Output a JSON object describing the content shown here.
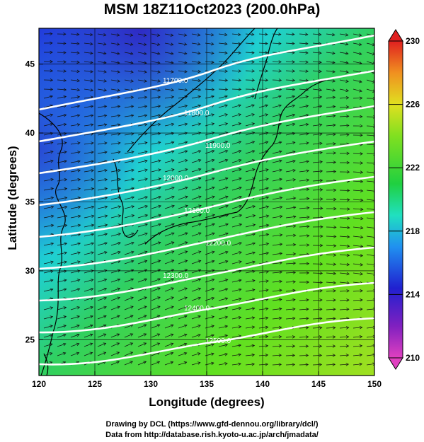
{
  "title": "MSM 18Z11Oct2023 (200.0hPa)",
  "xaxis": {
    "label": "Longitude (degrees)",
    "range": [
      120,
      150
    ],
    "ticks": [
      "120",
      "125",
      "130",
      "135",
      "140",
      "145",
      "150"
    ]
  },
  "yaxis": {
    "label": "Latitude  (degrees)",
    "range": [
      22.4,
      47.6
    ],
    "ticks": [
      "25",
      "30",
      "35",
      "40",
      "45"
    ]
  },
  "colorbar": {
    "range": [
      210,
      230
    ],
    "ticks": [
      "230",
      "226",
      "222",
      "218",
      "214",
      "210"
    ]
  },
  "contour_labels": [
    "11700.0",
    "11800.0",
    "11900.0",
    "12000.0",
    "12100.0",
    "12200.0",
    "12300.0",
    "12400.0",
    "12500.0"
  ],
  "credits": {
    "line1": "Drawing by DCL (https://www.gfd-dennou.org/library/dcl/)",
    "line2": "Data from http://database.rish.kyoto-u.ac.jp/arch/jmadata/"
  }
}
